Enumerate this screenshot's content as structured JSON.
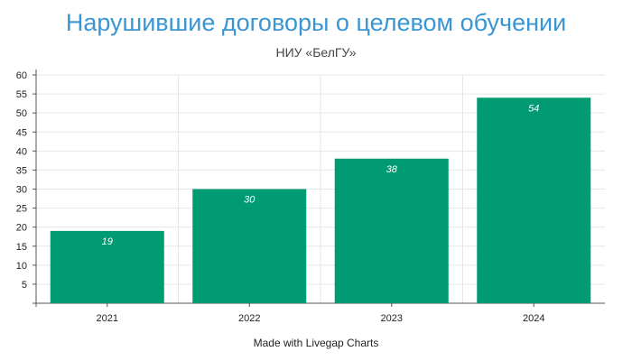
{
  "chart_data": {
    "type": "bar",
    "title": "Нарушившие договоры о целевом обучении",
    "subtitle": "НИУ «БелГУ»",
    "categories": [
      "2021",
      "2022",
      "2023",
      "2024"
    ],
    "values": [
      19,
      30,
      38,
      54
    ],
    "ylim": [
      0,
      60
    ],
    "yticks": [
      5,
      10,
      15,
      20,
      25,
      30,
      35,
      40,
      45,
      50,
      55,
      60
    ],
    "bar_color": "#009b72",
    "label_color": "#ffffff",
    "grid": true,
    "legend": "none"
  },
  "footer": {
    "credit": "Made with Livegap Charts"
  },
  "colors": {
    "title": "#3a96d2",
    "grid": "#e6e6e6",
    "axis": "#555555"
  }
}
